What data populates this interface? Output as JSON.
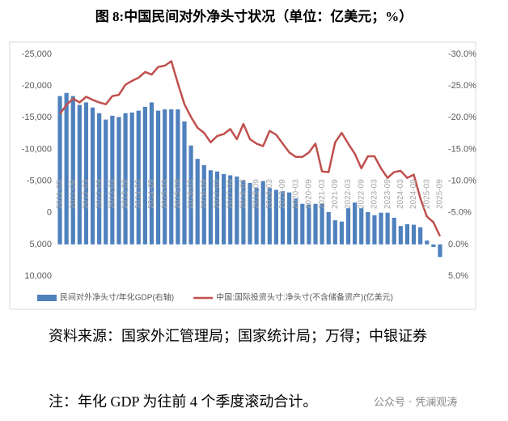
{
  "header": {
    "title": "图 8:中国民间对外净头寸状况（单位：亿美元；%）"
  },
  "chart_data": {
    "type": "bar-line",
    "categories": [
      "2011-03",
      null,
      "2011-09",
      null,
      "2012-03",
      null,
      "2012-09",
      null,
      "2013-03",
      null,
      "2013-09",
      null,
      "2014-03",
      null,
      "2014-09",
      null,
      "2015-03",
      null,
      "2015-09",
      null,
      "2016-03",
      null,
      "2016-09",
      null,
      "2017-03",
      null,
      "2017-09",
      null,
      "2018-03",
      null,
      "2018-09",
      null,
      "2019-03",
      null,
      "2019-09",
      null,
      "2020-03",
      null,
      "2020-09",
      null,
      "2021-03",
      null,
      "2021-09",
      null,
      "2022-03",
      null,
      "2022-09",
      null,
      "2023-03",
      null,
      "2023-09",
      null,
      "2024-03",
      null,
      "2024-09",
      null,
      "2025-03",
      null,
      "2025-09"
    ],
    "series": [
      {
        "name": "民间对外净头寸/年化GDP(右轴)",
        "type": "bar",
        "axis": "y2",
        "color": "#4f81bd",
        "values": [
          -23.4,
          -23.9,
          -23.4,
          -22.0,
          -22.4,
          -21.6,
          -20.7,
          -19.7,
          -20.3,
          -20.1,
          -20.7,
          -20.8,
          -21.1,
          -21.7,
          -22.4,
          -21.1,
          -21.3,
          -21.3,
          -21.3,
          -19.4,
          -15.6,
          -13.5,
          -12.5,
          -11.7,
          -11.5,
          -11.1,
          -10.9,
          -10.7,
          -10.1,
          -9.7,
          -8.9,
          -10.0,
          -8.9,
          -8.6,
          -8.4,
          -8.2,
          -7.2,
          -6.4,
          -6.3,
          -6.4,
          -6.4,
          -5.1,
          -3.8,
          -3.6,
          -5.7,
          -6.6,
          -5.7,
          -5.1,
          -4.6,
          -5.0,
          -5.0,
          -4.2,
          -2.9,
          -3.2,
          -3.1,
          -2.7,
          -0.6,
          0.4,
          2.0
        ]
      },
      {
        "name": "中国:国际投资头寸:净头寸(不含储备资产)(亿美元)",
        "type": "line",
        "color": "#c0504d",
        "values": [
          -15600,
          -17000,
          -18000,
          -17400,
          -18300,
          -17800,
          -17400,
          -17100,
          -18400,
          -18600,
          -20200,
          -20800,
          -21300,
          -22200,
          -21800,
          -23000,
          -23200,
          -23900,
          -20400,
          -17100,
          -15100,
          -13400,
          -12600,
          -11100,
          -12100,
          -12400,
          -13200,
          -11600,
          -14000,
          -11600,
          -10900,
          -10500,
          -12900,
          -12300,
          -10900,
          -9500,
          -8800,
          -8800,
          -9500,
          -10900,
          -6500,
          -6400,
          -11100,
          -12600,
          -10900,
          -9300,
          -7000,
          -8900,
          -8900,
          -7000,
          -5500,
          -6400,
          -6600,
          -5500,
          -6000,
          -2300,
          600,
          1500,
          3700
        ]
      }
    ],
    "ylim": [
      -25000,
      10000
    ],
    "y_inverted": true,
    "yticks": [
      {
        "value": -25000,
        "label": "-25,000"
      },
      {
        "value": -20000,
        "label": "-20,000"
      },
      {
        "value": -15000,
        "label": "-15,000"
      },
      {
        "value": -10000,
        "label": "-10,000"
      },
      {
        "value": -5000,
        "label": "-5,000"
      },
      0,
      {
        "value": 5000,
        "label": "5,000"
      },
      {
        "value": 10000,
        "label": "10,000"
      }
    ],
    "y2lim": [
      -30,
      5
    ],
    "y2_inverted": true,
    "y2ticks": [
      {
        "value": -30,
        "label": "-30.0%"
      },
      {
        "value": -25,
        "label": "-25.0%"
      },
      {
        "value": -20,
        "label": "-20.0%"
      },
      {
        "value": -15,
        "label": "-15.0%"
      },
      {
        "value": -10,
        "label": "-10.0%"
      },
      {
        "value": -5,
        "label": "-5.0%"
      },
      {
        "value": 0,
        "label": "0.0%"
      },
      {
        "value": 5,
        "label": "5.0%"
      }
    ],
    "legend": "bottom"
  },
  "source": "资料来源：国家外汇管理局；国家统计局；万得；中银证券",
  "note": "注：年化 GDP 为往前 4 个季度滚动合计。",
  "watermark": "公众号 · 凭澜观涛"
}
